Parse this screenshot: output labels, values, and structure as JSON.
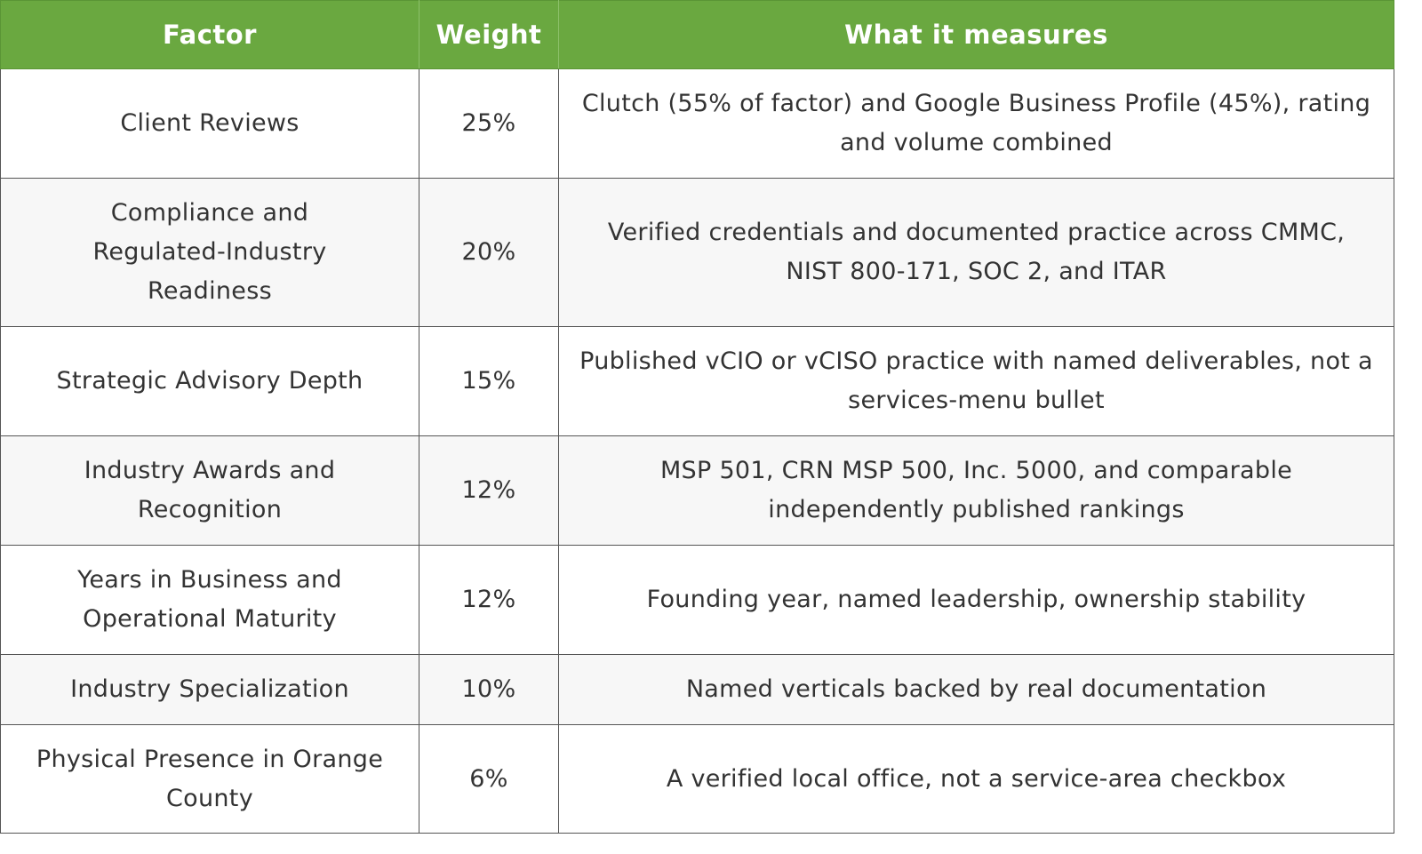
{
  "table": {
    "headers": [
      "Factor",
      "Weight",
      "What it measures"
    ],
    "rows": [
      {
        "factor": "Client Reviews",
        "weight": "25%",
        "measures": "Clutch (55% of factor) and Google Business Profile (45%), rating and volume combined"
      },
      {
        "factor": "Compliance and Regulated-Industry Readiness",
        "weight": "20%",
        "measures": "Verified credentials and documented practice across CMMC, NIST 800-171, SOC 2, and ITAR"
      },
      {
        "factor": "Strategic Advisory Depth",
        "weight": "15%",
        "measures": "Published vCIO or vCISO practice with named deliverables, not a services-menu bullet"
      },
      {
        "factor": "Industry Awards and Recognition",
        "weight": "12%",
        "measures": "MSP 501, CRN MSP 500, Inc. 5000, and comparable independently published rankings"
      },
      {
        "factor": "Years in Business and Operational Maturity",
        "weight": "12%",
        "measures": "Founding year, named leadership, ownership stability"
      },
      {
        "factor": "Industry Specialization",
        "weight": "10%",
        "measures": "Named verticals backed by real documentation"
      },
      {
        "factor": "Physical Presence in Orange County",
        "weight": "6%",
        "measures": "A verified local office, not a service-area checkbox"
      }
    ]
  },
  "colors": {
    "header_bg": "#6aa840",
    "header_text": "#ffffff",
    "row_alt_bg": "#f7f7f7",
    "border": "#555555"
  }
}
